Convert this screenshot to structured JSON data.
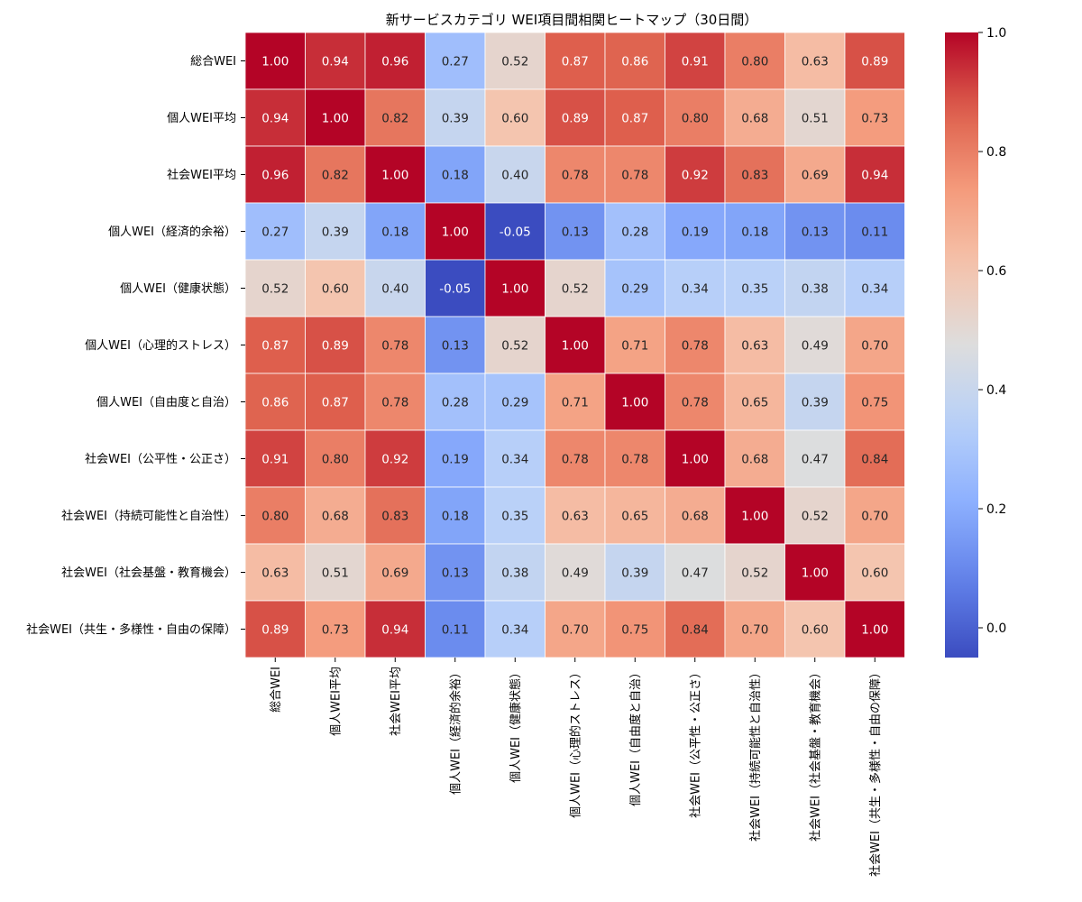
{
  "chart_data": {
    "type": "heatmap",
    "title": "新サービスカテゴリ WEI項目間相関ヒートマップ（30日間）",
    "row_labels": [
      "総合WEI",
      "個人WEI平均",
      "社会WEI平均",
      "個人WEI（経済的余裕）",
      "個人WEI（健康状態）",
      "個人WEI（心理的ストレス）",
      "個人WEI（自由度と自治）",
      "社会WEI（公平性・公正さ）",
      "社会WEI（持続可能性と自治性）",
      "社会WEI（社会基盤・教育機会）",
      "社会WEI（共生・多様性・自由の保障）"
    ],
    "col_labels": [
      "総合WEI",
      "個人WEI平均",
      "社会WEI平均",
      "個人WEI（経済的余裕）",
      "個人WEI（健康状態）",
      "個人WEI（心理的ストレス）",
      "個人WEI（自由度と自治）",
      "社会WEI（公平性・公正さ）",
      "社会WEI（持続可能性と自治性）",
      "社会WEI（社会基盤・教育機会）",
      "社会WEI（共生・多様性・自由の保障）"
    ],
    "values": [
      [
        1.0,
        0.94,
        0.96,
        0.27,
        0.52,
        0.87,
        0.86,
        0.91,
        0.8,
        0.63,
        0.89
      ],
      [
        0.94,
        1.0,
        0.82,
        0.39,
        0.6,
        0.89,
        0.87,
        0.8,
        0.68,
        0.51,
        0.73
      ],
      [
        0.96,
        0.82,
        1.0,
        0.18,
        0.4,
        0.78,
        0.78,
        0.92,
        0.83,
        0.69,
        0.94
      ],
      [
        0.27,
        0.39,
        0.18,
        1.0,
        -0.05,
        0.13,
        0.28,
        0.19,
        0.18,
        0.13,
        0.11
      ],
      [
        0.52,
        0.6,
        0.4,
        -0.05,
        1.0,
        0.52,
        0.29,
        0.34,
        0.35,
        0.38,
        0.34
      ],
      [
        0.87,
        0.89,
        0.78,
        0.13,
        0.52,
        1.0,
        0.71,
        0.78,
        0.63,
        0.49,
        0.7
      ],
      [
        0.86,
        0.87,
        0.78,
        0.28,
        0.29,
        0.71,
        1.0,
        0.78,
        0.65,
        0.39,
        0.75
      ],
      [
        0.91,
        0.8,
        0.92,
        0.19,
        0.34,
        0.78,
        0.78,
        1.0,
        0.68,
        0.47,
        0.84
      ],
      [
        0.8,
        0.68,
        0.83,
        0.18,
        0.35,
        0.63,
        0.65,
        0.68,
        1.0,
        0.52,
        0.7
      ],
      [
        0.63,
        0.51,
        0.69,
        0.13,
        0.38,
        0.49,
        0.39,
        0.47,
        0.52,
        1.0,
        0.6
      ],
      [
        0.89,
        0.73,
        0.94,
        0.11,
        0.34,
        0.7,
        0.75,
        0.84,
        0.7,
        0.6,
        1.0
      ]
    ],
    "colormap": "coolwarm",
    "vmin": -0.05,
    "vmax": 1.0,
    "colorbar_ticks": [
      "0.0",
      "0.2",
      "0.4",
      "0.6",
      "0.8",
      "1.0"
    ],
    "colorbar_tick_values": [
      0.0,
      0.2,
      0.4,
      0.6,
      0.8,
      1.0
    ],
    "annotations": "values shown in each cell with 2 decimals",
    "legend": "colorbar right"
  }
}
